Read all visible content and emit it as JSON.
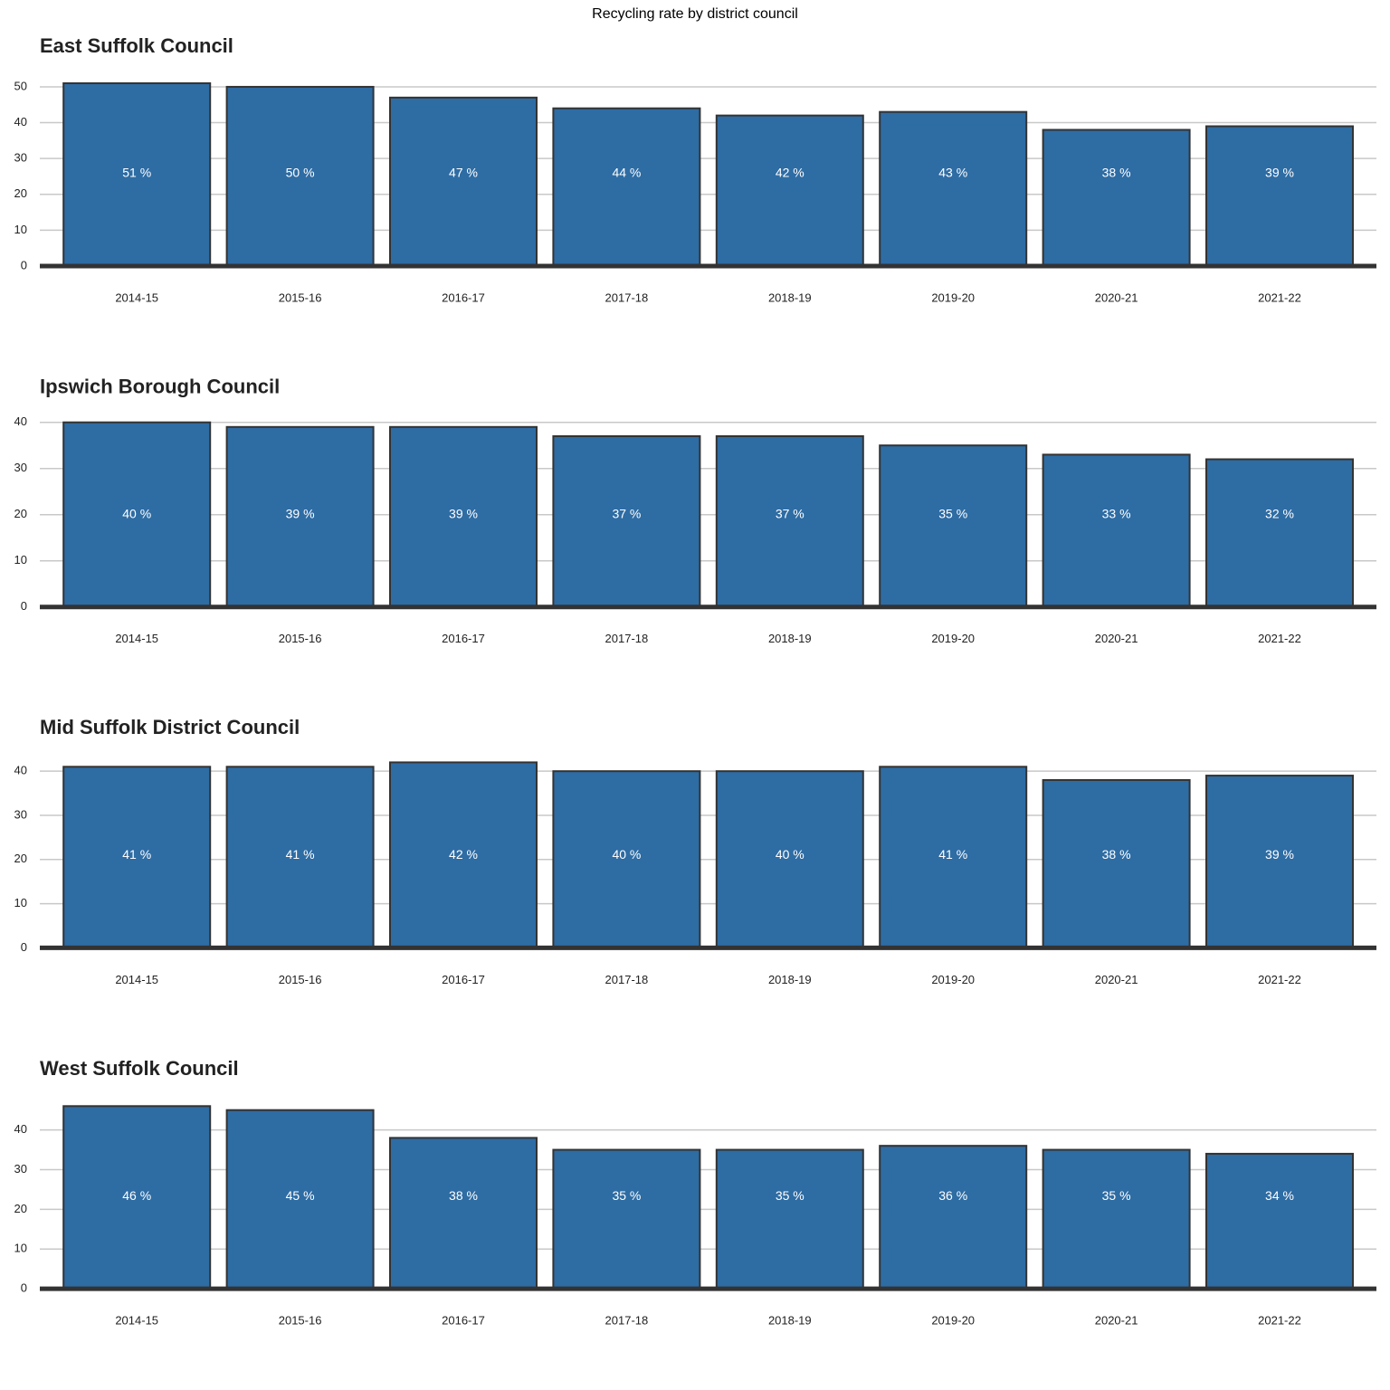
{
  "title": "Recycling rate by district council",
  "chart_data": [
    {
      "type": "bar",
      "title": "East Suffolk Council",
      "categories": [
        "2014-15",
        "2015-16",
        "2016-17",
        "2017-18",
        "2018-19",
        "2019-20",
        "2020-21",
        "2021-22"
      ],
      "values": [
        51,
        50,
        47,
        44,
        42,
        43,
        38,
        39
      ],
      "value_labels": [
        "51 %",
        "50 %",
        "47 %",
        "44 %",
        "42 %",
        "43 %",
        "38 %",
        "39 %"
      ],
      "color": "#2e6ca4",
      "ylim": [
        0,
        51.5
      ],
      "yticks": [
        0,
        10,
        20,
        30,
        40,
        50
      ],
      "grid": true
    },
    {
      "type": "bar",
      "title": "Ipswich Borough Council",
      "categories": [
        "2014-15",
        "2015-16",
        "2016-17",
        "2017-18",
        "2018-19",
        "2019-20",
        "2020-21",
        "2021-22"
      ],
      "values": [
        40,
        39,
        39,
        37,
        37,
        35,
        33,
        32
      ],
      "value_labels": [
        "40 %",
        "39 %",
        "39 %",
        "37 %",
        "37 %",
        "35 %",
        "33 %",
        "32 %"
      ],
      "color": "#2e6ca4",
      "ylim": [
        0,
        40
      ],
      "yticks": [
        0,
        10,
        20,
        30,
        40
      ],
      "grid": true
    },
    {
      "type": "bar",
      "title": "Mid Suffolk District Council",
      "categories": [
        "2014-15",
        "2015-16",
        "2016-17",
        "2017-18",
        "2018-19",
        "2019-20",
        "2020-21",
        "2021-22"
      ],
      "values": [
        41,
        41,
        42,
        40,
        40,
        41,
        38,
        39
      ],
      "value_labels": [
        "41 %",
        "41 %",
        "42 %",
        "40 %",
        "40 %",
        "41 %",
        "38 %",
        "39 %"
      ],
      "color": "#2e6ca4",
      "ylim": [
        0,
        41.8
      ],
      "yticks": [
        0,
        10,
        20,
        30,
        40
      ],
      "grid": true
    },
    {
      "type": "bar",
      "title": "West Suffolk Council",
      "categories": [
        "2014-15",
        "2015-16",
        "2016-17",
        "2017-18",
        "2018-19",
        "2019-20",
        "2020-21",
        "2021-22"
      ],
      "values": [
        46,
        45,
        38,
        35,
        35,
        36,
        35,
        34
      ],
      "value_labels": [
        "46 %",
        "45 %",
        "38 %",
        "35 %",
        "35 %",
        "36 %",
        "35 %",
        "34 %"
      ],
      "color": "#2e6ca4",
      "ylim": [
        0,
        46.5
      ],
      "yticks": [
        0,
        10,
        20,
        30,
        40
      ],
      "grid": true
    }
  ]
}
